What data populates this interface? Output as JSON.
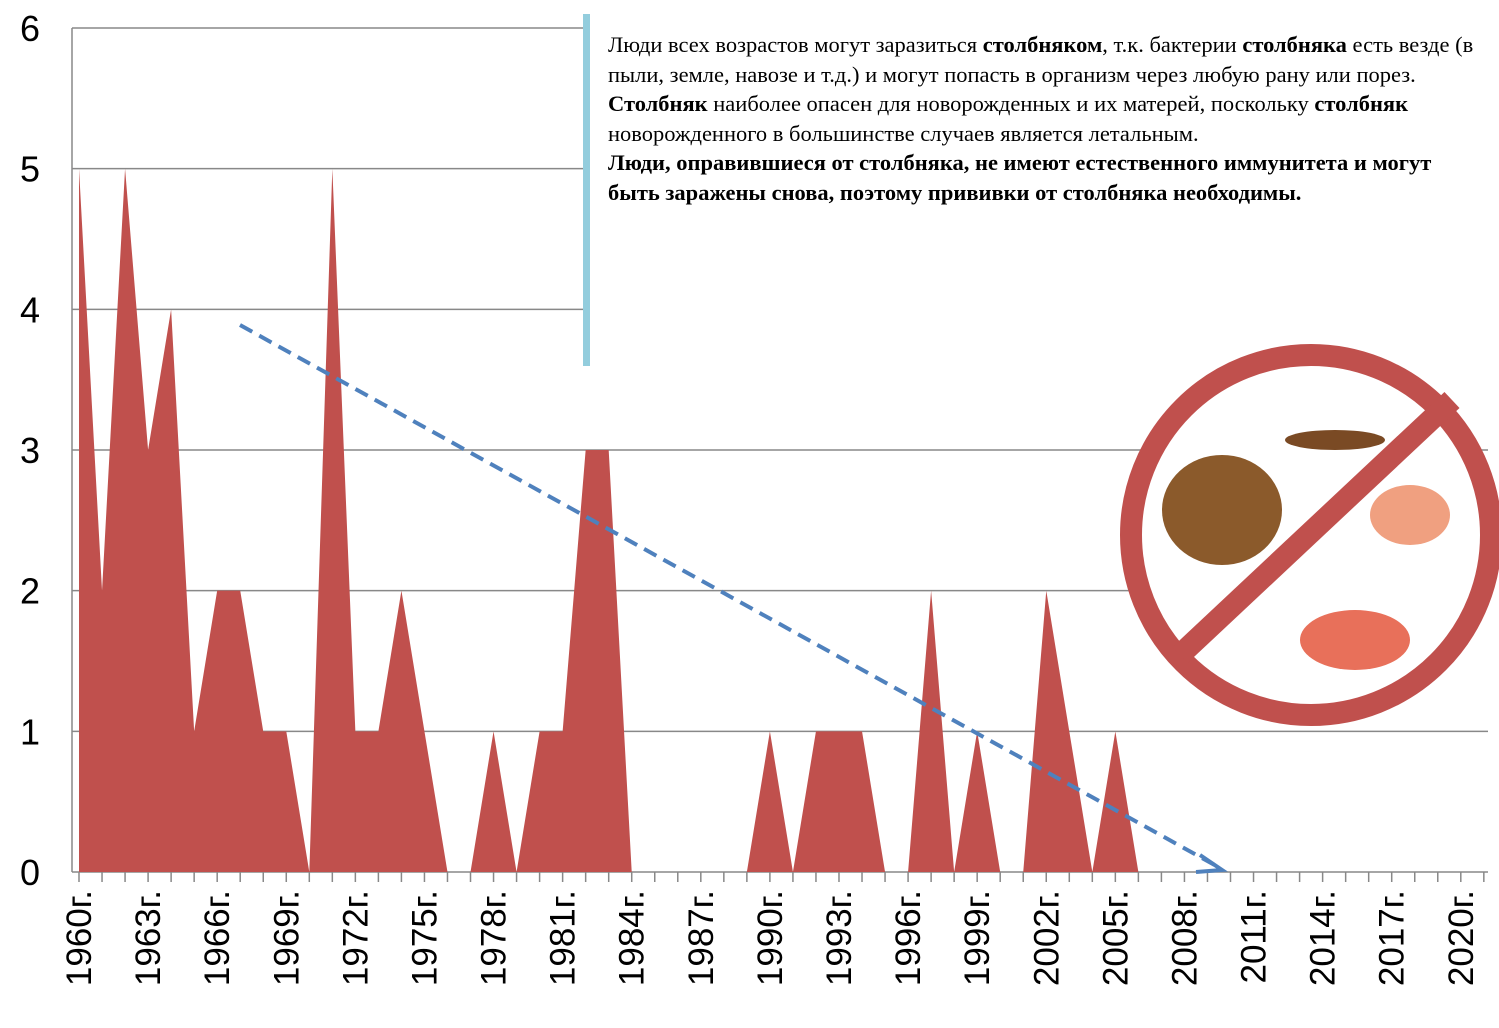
{
  "chart_data": {
    "type": "area",
    "color": "#c0504d",
    "categories": [
      "1960г.",
      null,
      null,
      "1963г.",
      null,
      null,
      "1966г.",
      null,
      null,
      "1969г.",
      null,
      null,
      "1972г.",
      null,
      null,
      "1975г.",
      null,
      null,
      "1978г.",
      null,
      null,
      "1981г.",
      null,
      null,
      "1984г.",
      null,
      null,
      "1987г.",
      null,
      null,
      "1990г.",
      null,
      null,
      "1993г.",
      null,
      null,
      "1996г.",
      null,
      null,
      "1999г.",
      null,
      null,
      "2002г.",
      null,
      null,
      "2005г.",
      null,
      null,
      "2008г.",
      null,
      null,
      "2011г.",
      null,
      null,
      "2014г.",
      null,
      null,
      "2017г.",
      null,
      null,
      "2020г.",
      null
    ],
    "values": [
      5,
      2,
      5,
      3,
      4,
      1,
      2,
      2,
      1,
      1,
      0,
      5,
      1,
      1,
      2,
      1,
      0,
      0,
      1,
      0,
      1,
      1,
      3,
      3,
      0,
      0,
      0,
      0,
      0,
      0,
      1,
      0,
      1,
      1,
      1,
      0,
      0,
      2,
      0,
      1,
      0,
      0,
      2,
      1,
      0,
      1,
      0,
      0,
      0,
      0,
      0,
      0,
      0,
      0,
      0,
      0,
      0,
      0,
      0,
      0,
      0,
      0
    ],
    "ylim": [
      0,
      6
    ],
    "yticks": [
      0,
      1,
      2,
      3,
      4,
      5,
      6
    ],
    "grid": true,
    "annotation": [
      {
        "segments": [
          {
            "text": "Люди всех возрастов могут заразиться "
          },
          {
            "text": "столбняком",
            "bold": true
          },
          {
            "text": ", т.к. бактерии "
          },
          {
            "text": "столбняка",
            "bold": true
          },
          {
            "text": " есть везде (в пыли, земле, навозе и т.д.) и могут попасть в организм через любую рану или порез."
          }
        ]
      },
      {
        "segments": [
          {
            "text": "Столбняк",
            "bold": true
          },
          {
            "text": " наиболее опасен для новорожденных и их матерей, поскольку "
          },
          {
            "text": "столбняк",
            "bold": true
          },
          {
            "text": " новорожденного в большинстве случаев является летальным."
          }
        ]
      },
      {
        "segments": [
          {
            "text": "Люди, оправившиеся от столбняка, не имеют естественного иммунитета и могут быть заражены снова, поэтому прививки от столбняка необходимы.",
            "bold": true
          }
        ]
      }
    ]
  }
}
